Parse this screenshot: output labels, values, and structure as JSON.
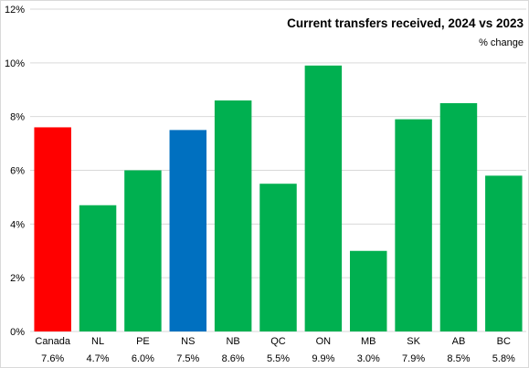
{
  "chart_data": {
    "type": "bar",
    "title": "Current transfers received, 2024 vs 2023",
    "subtitle": "% change",
    "categories": [
      "Canada",
      "NL",
      "PE",
      "NS",
      "NB",
      "QC",
      "ON",
      "MB",
      "SK",
      "AB",
      "BC"
    ],
    "values": [
      7.6,
      4.7,
      6.0,
      7.5,
      8.6,
      5.5,
      9.9,
      3.0,
      7.9,
      8.5,
      5.8
    ],
    "value_labels": [
      "7.6%",
      "4.7%",
      "6.0%",
      "7.5%",
      "8.6%",
      "5.5%",
      "9.9%",
      "3.0%",
      "7.9%",
      "8.5%",
      "5.8%"
    ],
    "colors": [
      "#ff0000",
      "#00b050",
      "#00b050",
      "#0070c0",
      "#00b050",
      "#00b050",
      "#00b050",
      "#00b050",
      "#00b050",
      "#00b050",
      "#00b050"
    ],
    "yticks": [
      "0%",
      "2%",
      "4%",
      "6%",
      "8%",
      "10%",
      "12%"
    ],
    "ylim": [
      0,
      12
    ],
    "ytick_step": 2,
    "grid": true,
    "gridline_color": "#d9d9d9",
    "legend": "none"
  }
}
